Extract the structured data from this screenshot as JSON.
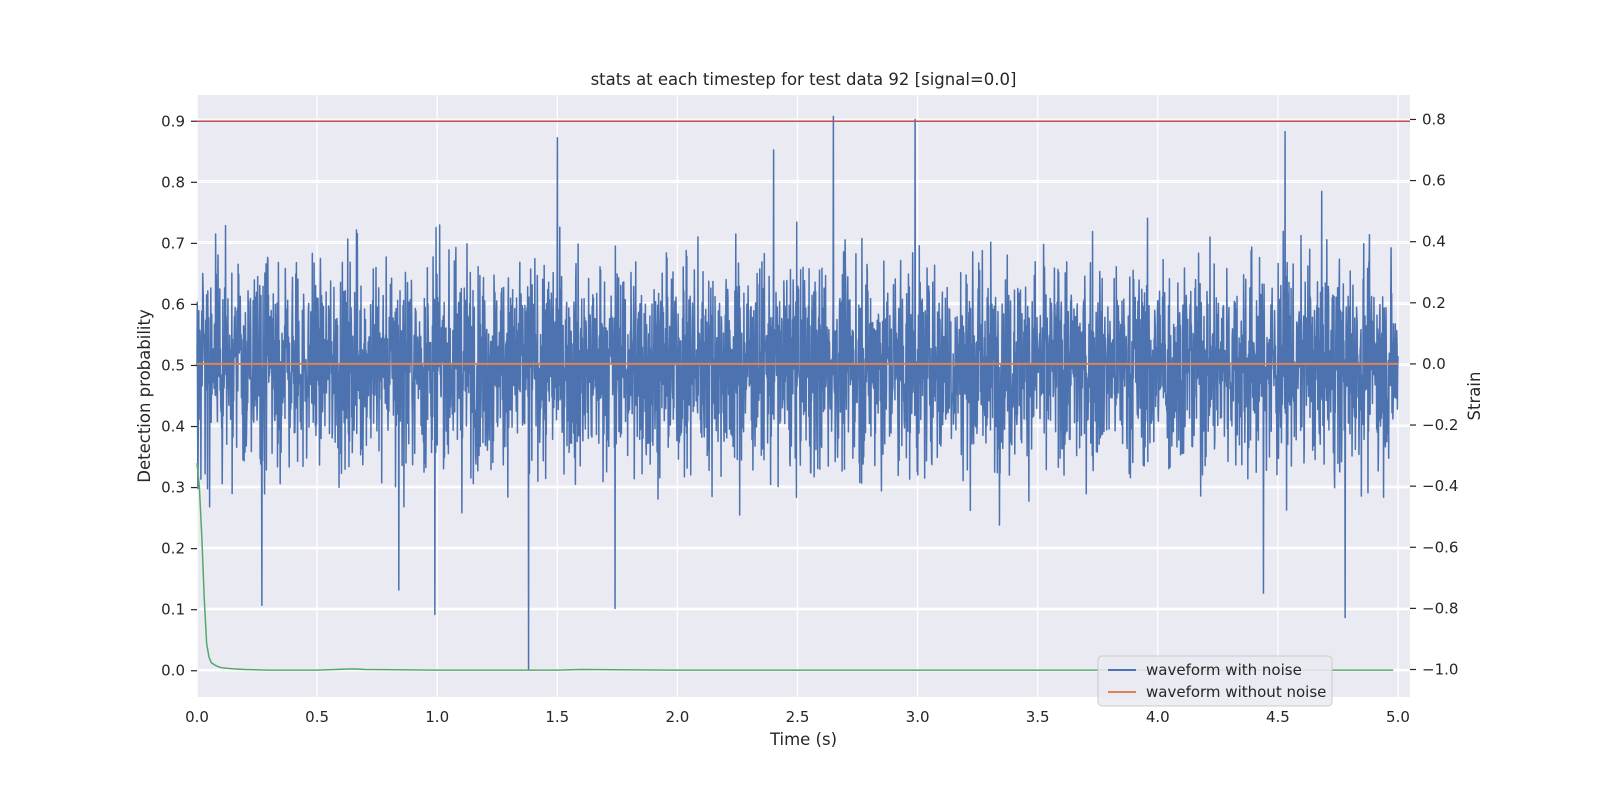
{
  "chart_data": {
    "type": "line",
    "title": "stats at each timestep for test data 92 [signal=0.0]",
    "xlabel": "Time (s)",
    "ylabel": "Detection probability",
    "y2label": "Strain",
    "xlim": [
      0.0,
      5.05
    ],
    "ylim": [
      -0.043,
      0.943
    ],
    "y2lim": [
      -1.09,
      0.88
    ],
    "grid": true,
    "legend_placement": "lower-right",
    "xticks": [
      "0.0",
      "0.5",
      "1.0",
      "1.5",
      "2.0",
      "2.5",
      "3.0",
      "3.5",
      "4.0",
      "4.5",
      "5.0"
    ],
    "xtick_values": [
      0.0,
      0.5,
      1.0,
      1.5,
      2.0,
      2.5,
      3.0,
      3.5,
      4.0,
      4.5,
      5.0
    ],
    "yticks": [
      "0.0",
      "0.1",
      "0.2",
      "0.3",
      "0.4",
      "0.5",
      "0.6",
      "0.7",
      "0.8",
      "0.9"
    ],
    "ytick_values": [
      0.0,
      0.1,
      0.2,
      0.3,
      0.4,
      0.5,
      0.6,
      0.7,
      0.8,
      0.9
    ],
    "y2ticks": [
      "−1.0",
      "−0.8",
      "−0.6",
      "−0.4",
      "−0.2",
      "0.0",
      "0.2",
      "0.4",
      "0.6",
      "0.8"
    ],
    "y2tick_values": [
      -1.0,
      -0.8,
      -0.6,
      -0.4,
      -0.2,
      0.0,
      0.2,
      0.4,
      0.6,
      0.8
    ],
    "threshold": {
      "axis": "left",
      "y": 0.9,
      "color": "#c44e52"
    },
    "series": [
      {
        "name": "waveform with noise",
        "axis": "right",
        "color": "#4c72b0",
        "summary": {
          "x_start": 0.0,
          "x_end": 5.0,
          "mean": 0.0,
          "typical_amplitude": 0.3,
          "max": 0.81,
          "min": -1.0
        },
        "spikes": [
          {
            "x": 0.27,
            "y": -0.79
          },
          {
            "x": 0.84,
            "y": -0.74
          },
          {
            "x": 0.99,
            "y": -0.82
          },
          {
            "x": 1.38,
            "y": -1.0
          },
          {
            "x": 1.74,
            "y": -0.8
          },
          {
            "x": 2.65,
            "y": 0.81
          },
          {
            "x": 2.99,
            "y": 0.8
          },
          {
            "x": 4.44,
            "y": -0.75
          },
          {
            "x": 4.78,
            "y": -0.83
          },
          {
            "x": 2.4,
            "y": 0.7
          },
          {
            "x": 4.53,
            "y": 0.76
          },
          {
            "x": 1.5,
            "y": 0.74
          }
        ]
      },
      {
        "name": "waveform without noise",
        "axis": "right",
        "color": "#dd8452",
        "x": [
          0.0,
          5.0
        ],
        "y": [
          0.0,
          0.0
        ]
      },
      {
        "name": "",
        "axis": "left",
        "color": "#55a868",
        "x": [
          0.0,
          0.01,
          0.02,
          0.03,
          0.04,
          0.05,
          0.06,
          0.08,
          0.1,
          0.15,
          0.2,
          0.3,
          0.5,
          0.65,
          0.7,
          1.0,
          1.5,
          1.6,
          2.0,
          3.0,
          4.0,
          4.98
        ],
        "y": [
          0.34,
          0.3,
          0.22,
          0.12,
          0.045,
          0.022,
          0.013,
          0.008,
          0.005,
          0.003,
          0.002,
          0.001,
          0.001,
          0.003,
          0.002,
          0.001,
          0.001,
          0.002,
          0.001,
          0.001,
          0.001,
          0.001
        ]
      }
    ]
  }
}
